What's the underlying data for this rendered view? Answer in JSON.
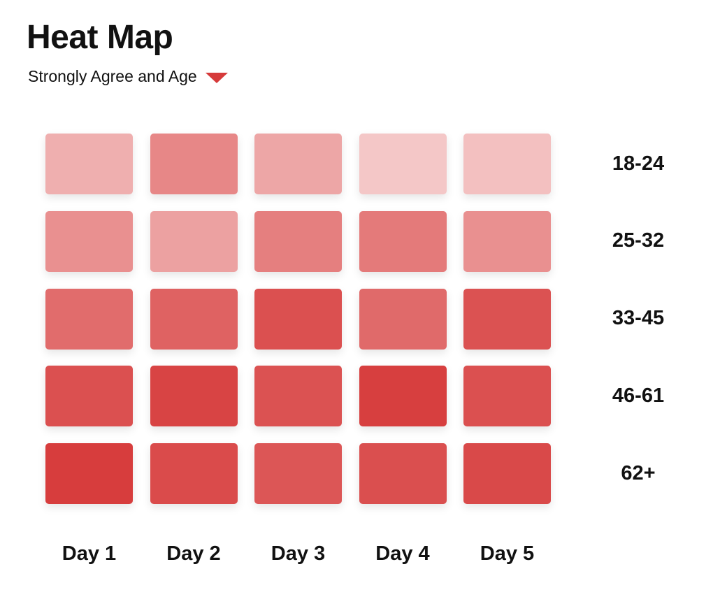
{
  "title": "Heat Map",
  "subtitle": "Strongly Agree and Age",
  "accent_color": "#d63a3a",
  "chart_data": {
    "type": "heatmap",
    "x": [
      "Day 1",
      "Day 2",
      "Day 3",
      "Day 4",
      "Day 5"
    ],
    "y": [
      "18-24",
      "25-32",
      "33-45",
      "46-61",
      "62+"
    ],
    "values": [
      [
        0.32,
        0.55,
        0.37,
        0.18,
        0.22
      ],
      [
        0.5,
        0.4,
        0.6,
        0.63,
        0.5
      ],
      [
        0.71,
        0.77,
        0.87,
        0.72,
        0.86
      ],
      [
        0.87,
        0.94,
        0.86,
        0.97,
        0.87
      ],
      [
        0.98,
        0.9,
        0.84,
        0.88,
        0.91
      ]
    ],
    "color_scale": [
      "#fbe6e6",
      "#d63a3a"
    ],
    "legend": "none",
    "grid": false
  }
}
